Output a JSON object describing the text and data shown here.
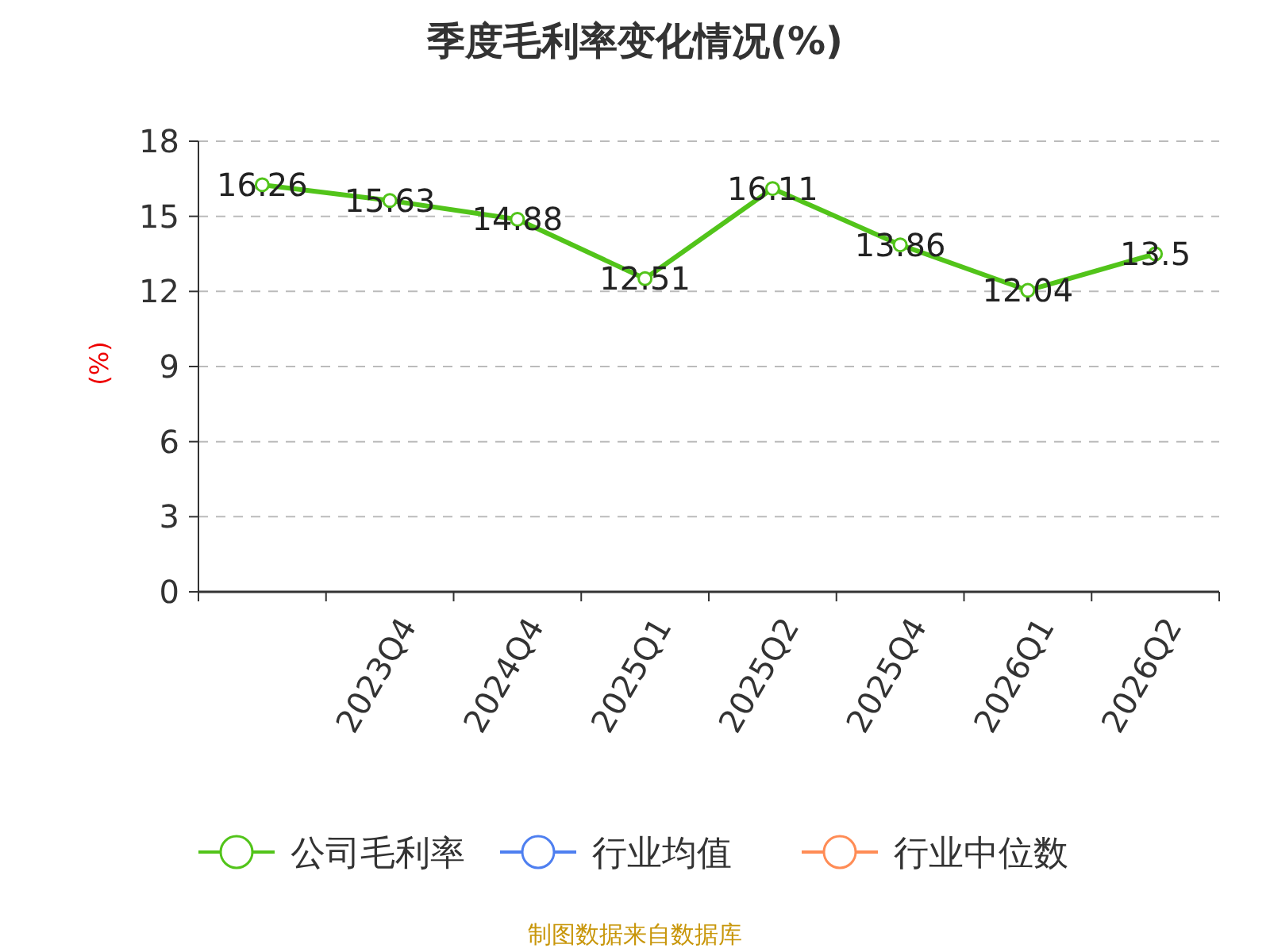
{
  "chart_data": {
    "type": "line",
    "title": "季度毛利率变化情况(%)",
    "ylabel": "(%)",
    "categories": [
      null,
      "2023Q4",
      "2024Q4",
      "2025Q1",
      "2025Q2",
      "2025Q4",
      "2026Q1",
      "2026Q2"
    ],
    "series": [
      {
        "name": "公司毛利率",
        "color": "#52c41a",
        "values": [
          16.26,
          15.63,
          14.88,
          12.51,
          16.11,
          13.86,
          12.04,
          13.5
        ]
      },
      {
        "name": "行业均值",
        "color": "#4e7ff0",
        "values": [
          null,
          null,
          null,
          null,
          null,
          null,
          null,
          null
        ]
      },
      {
        "name": "行业中位数",
        "color": "#ff8c55",
        "values": [
          null,
          null,
          null,
          null,
          null,
          null,
          null,
          null
        ]
      }
    ],
    "ylim": [
      0,
      18
    ],
    "yticks": [
      0,
      3,
      6,
      9,
      12,
      15,
      18
    ],
    "grid": "y",
    "legend": "bottom",
    "marker": "circle",
    "line_style": "solid",
    "data_labels": true,
    "annotations": [
      "制图数据来自数据库"
    ]
  }
}
